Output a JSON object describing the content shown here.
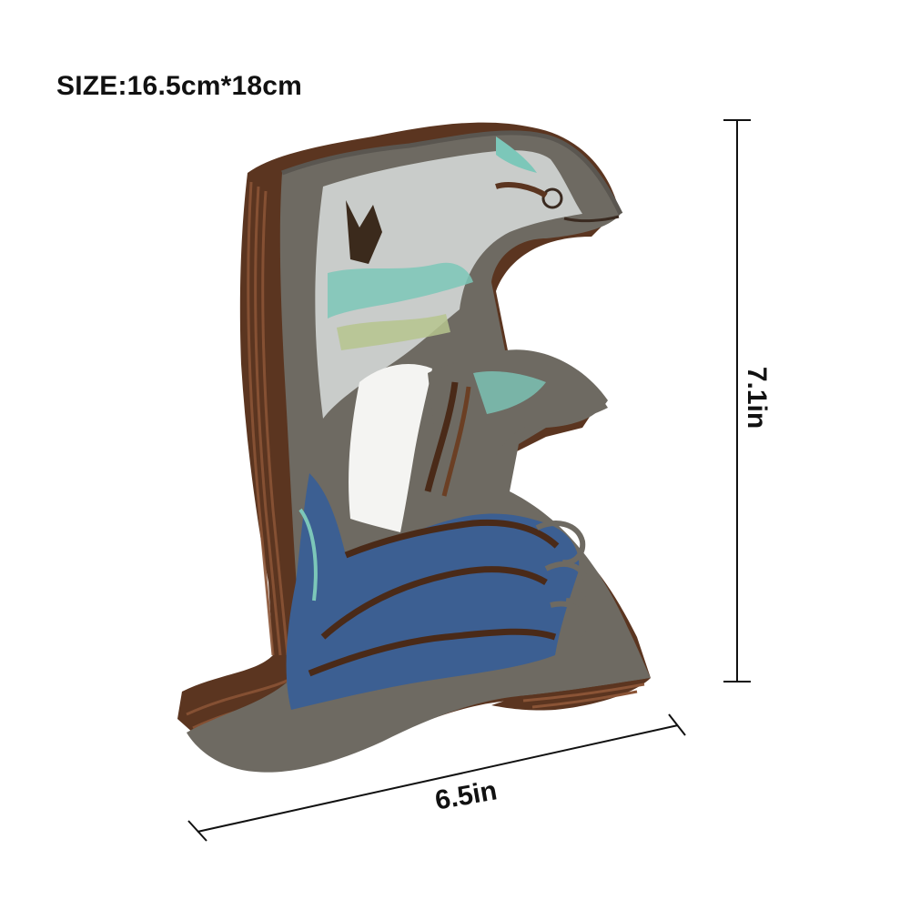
{
  "size_label": "SIZE:16.5cm*18cm",
  "dimensions": {
    "height": "7.1in",
    "width": "6.5in"
  },
  "product": {
    "subject": "layered wooden dolphin figure on waves",
    "colors": {
      "wood_edge": "#6b3f24",
      "wood_dark": "#4a2a18",
      "gray_face": "#6e6a62",
      "sea_blue": "#3c5f92",
      "teal": "#7cc7b9",
      "sky": "#c9ccca"
    }
  }
}
